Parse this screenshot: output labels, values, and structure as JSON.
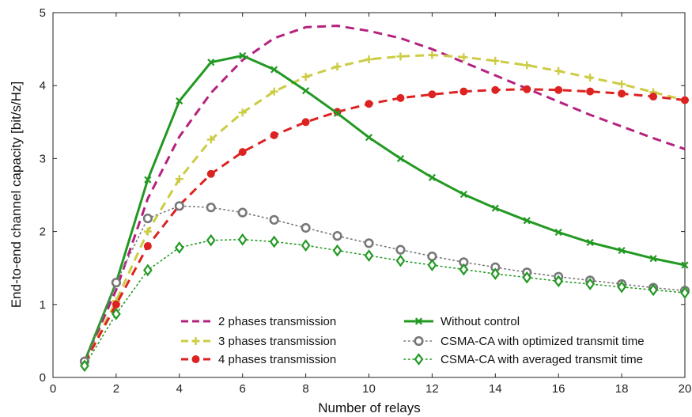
{
  "chart_data": {
    "type": "line",
    "xlabel": "Number of relays",
    "ylabel": "End-to-end channel capacity [bit/s/Hz]",
    "xlim": [
      0,
      20
    ],
    "ylim": [
      0,
      5
    ],
    "xticks": [
      0,
      2,
      4,
      6,
      8,
      10,
      12,
      14,
      16,
      18,
      20
    ],
    "yticks": [
      0,
      1,
      2,
      3,
      4,
      5
    ],
    "grid": false,
    "legend_placement": "bottom-center",
    "x": [
      1,
      2,
      3,
      4,
      5,
      6,
      7,
      8,
      9,
      10,
      11,
      12,
      13,
      14,
      15,
      16,
      17,
      18,
      19,
      20
    ],
    "series": [
      {
        "name": "2 phases transmission",
        "color": "#b5227e",
        "dash": "dashed",
        "marker": "none",
        "values": [
          0.22,
          1.2,
          2.45,
          3.3,
          3.9,
          4.35,
          4.65,
          4.8,
          4.82,
          4.75,
          4.65,
          4.5,
          4.32,
          4.14,
          3.96,
          3.78,
          3.6,
          3.44,
          3.28,
          3.13
        ]
      },
      {
        "name": "3 phases transmission",
        "color": "#cccc44",
        "dash": "dashed",
        "marker": "plus",
        "values": [
          0.2,
          1.05,
          2.0,
          2.72,
          3.26,
          3.63,
          3.92,
          4.12,
          4.26,
          4.36,
          4.4,
          4.42,
          4.39,
          4.34,
          4.28,
          4.2,
          4.11,
          4.02,
          3.91,
          3.8
        ]
      },
      {
        "name": "4 phases transmission",
        "color": "#dd2222",
        "dash": "dashed",
        "marker": "dot",
        "values": [
          0.2,
          1.0,
          1.8,
          2.36,
          2.79,
          3.09,
          3.32,
          3.5,
          3.64,
          3.75,
          3.83,
          3.88,
          3.92,
          3.94,
          3.95,
          3.94,
          3.92,
          3.89,
          3.85,
          3.8
        ]
      },
      {
        "name": "Without control",
        "color": "#229922",
        "dash": "solid",
        "marker": "x",
        "values": [
          0.22,
          1.3,
          2.71,
          3.79,
          4.32,
          4.41,
          4.22,
          3.93,
          3.62,
          3.29,
          3.0,
          2.74,
          2.51,
          2.32,
          2.15,
          1.99,
          1.85,
          1.74,
          1.63,
          1.54
        ]
      },
      {
        "name": "CSMA-CA with optimized transmit time",
        "color": "#777777",
        "dash": "dotted",
        "marker": "circle",
        "values": [
          0.22,
          1.3,
          2.18,
          2.35,
          2.33,
          2.26,
          2.16,
          2.05,
          1.94,
          1.84,
          1.75,
          1.66,
          1.58,
          1.51,
          1.44,
          1.38,
          1.33,
          1.28,
          1.23,
          1.19
        ]
      },
      {
        "name": "CSMA-CA with averaged transmit time",
        "color": "#229922",
        "dash": "dotted",
        "marker": "diamond",
        "values": [
          0.16,
          0.87,
          1.47,
          1.78,
          1.88,
          1.89,
          1.86,
          1.81,
          1.74,
          1.67,
          1.6,
          1.54,
          1.48,
          1.42,
          1.37,
          1.32,
          1.28,
          1.24,
          1.2,
          1.16
        ]
      }
    ]
  }
}
